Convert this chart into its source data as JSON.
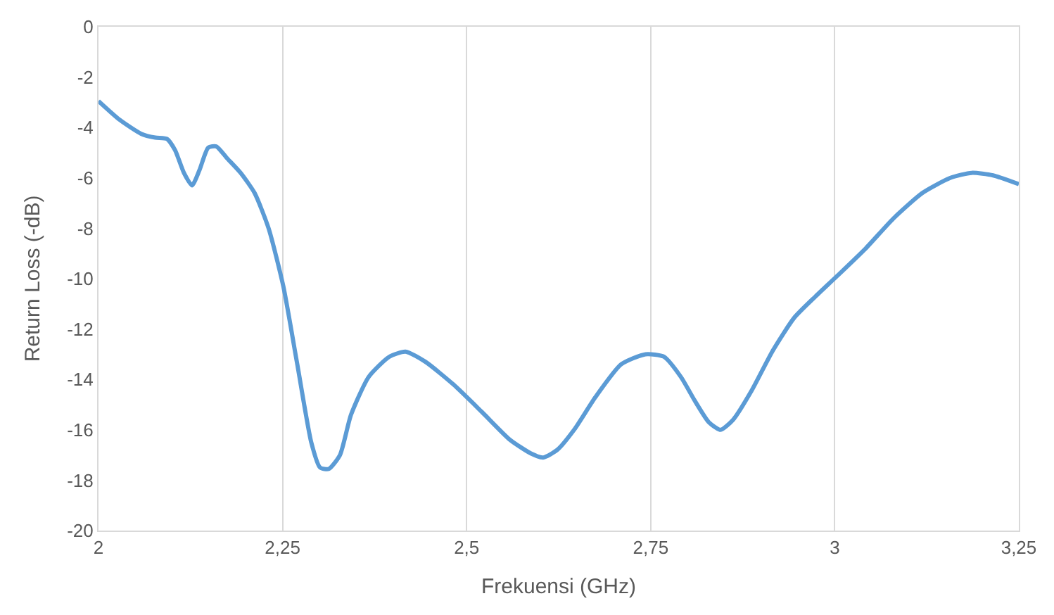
{
  "chart_data": {
    "type": "line",
    "xlabel": "Frekuensi (GHz)",
    "ylabel": "Return Loss (-dB)",
    "x": [
      2.0,
      2.029,
      2.058,
      2.077,
      2.093,
      2.104,
      2.116,
      2.127,
      2.137,
      2.149,
      2.16,
      2.174,
      2.193,
      2.212,
      2.231,
      2.251,
      2.27,
      2.289,
      2.301,
      2.313,
      2.328,
      2.343,
      2.367,
      2.395,
      2.417,
      2.444,
      2.482,
      2.521,
      2.559,
      2.588,
      2.604,
      2.623,
      2.646,
      2.675,
      2.71,
      2.743,
      2.768,
      2.791,
      2.81,
      2.829,
      2.845,
      2.862,
      2.887,
      2.916,
      2.945,
      2.974,
      3.003,
      3.042,
      3.08,
      3.119,
      3.157,
      3.186,
      3.215,
      3.25
    ],
    "series": [
      {
        "color": "#5b9bd5",
        "values": [
          -2.95,
          -3.7,
          -4.25,
          -4.4,
          -4.45,
          -4.9,
          -5.8,
          -6.3,
          -5.7,
          -4.8,
          -4.75,
          -5.2,
          -5.8,
          -6.6,
          -8.0,
          -10.3,
          -13.4,
          -16.5,
          -17.5,
          -17.55,
          -17.0,
          -15.4,
          -13.9,
          -13.1,
          -12.9,
          -13.3,
          -14.2,
          -15.3,
          -16.4,
          -16.95,
          -17.1,
          -16.8,
          -16.0,
          -14.7,
          -13.4,
          -13.0,
          -13.1,
          -13.9,
          -14.85,
          -15.7,
          -16.0,
          -15.6,
          -14.45,
          -12.85,
          -11.55,
          -10.7,
          -9.9,
          -8.8,
          -7.6,
          -6.6,
          -6.0,
          -5.8,
          -5.9,
          -6.25
        ]
      }
    ],
    "xlim": [
      2,
      3.25
    ],
    "xticks": [
      2,
      {
        "value": 2.25,
        "label": "2,25"
      },
      {
        "value": 2.5,
        "label": "2,5"
      },
      {
        "value": 2.75,
        "label": "2,75"
      },
      3,
      {
        "value": 3.25,
        "label": "3,25"
      }
    ],
    "ylim": [
      -20,
      0
    ],
    "yticks": [
      -20,
      -18,
      -16,
      -14,
      -12,
      -10,
      -8,
      -6,
      -4,
      -2,
      0
    ],
    "grid": "x",
    "marker": "none",
    "line_style": "solid"
  }
}
